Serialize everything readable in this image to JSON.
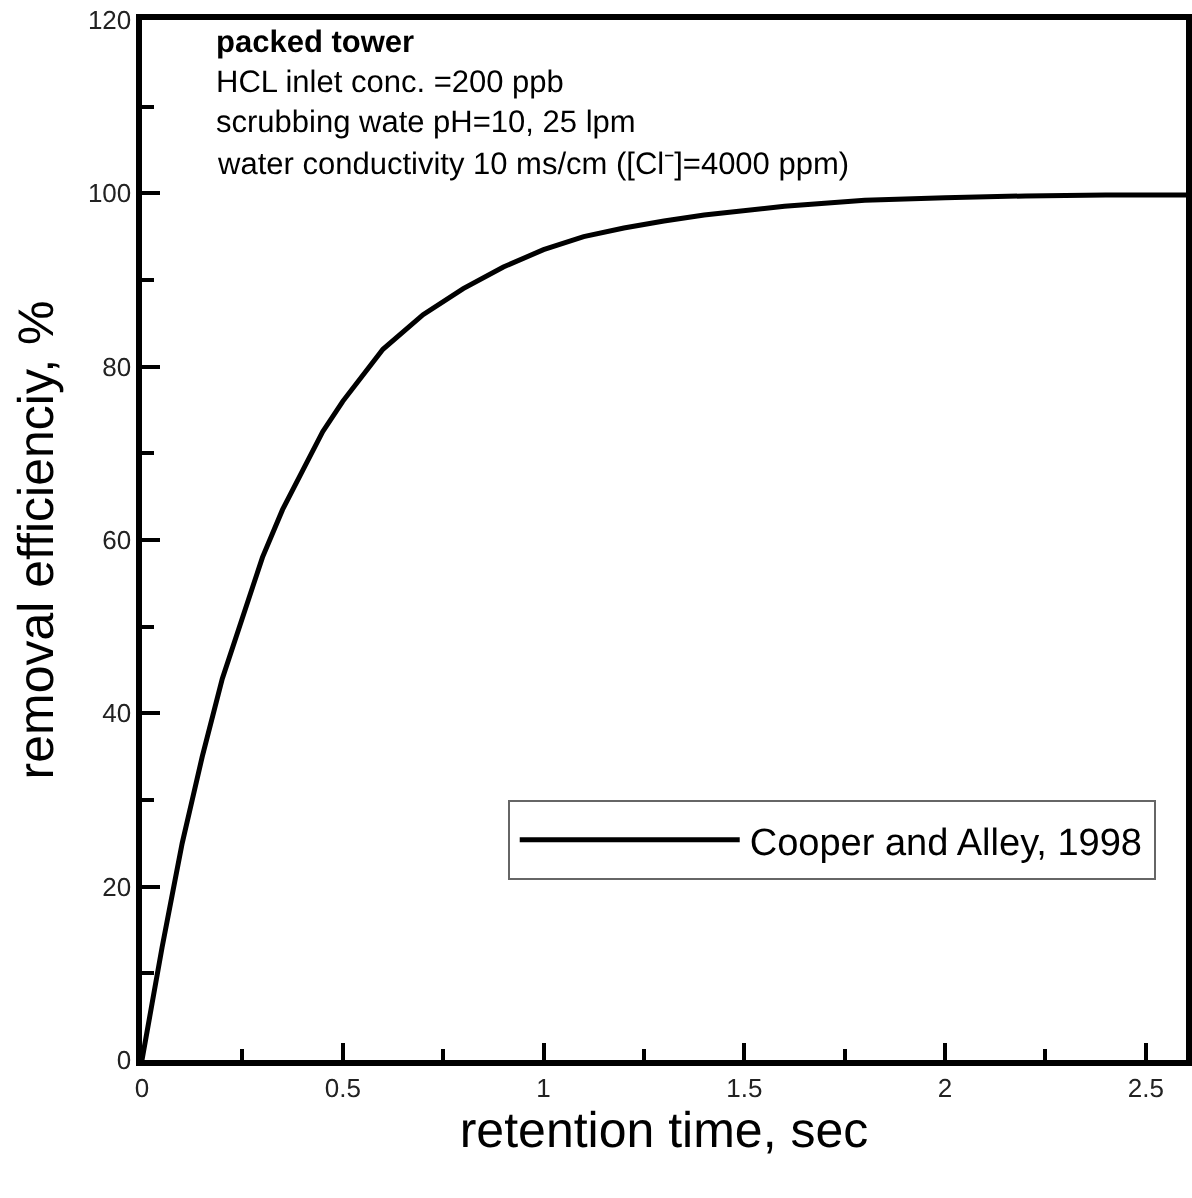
{
  "chart_data": {
    "type": "line",
    "xlabel": "retention time, sec",
    "ylabel": "removal efficienciy, %",
    "annotations": [
      "packed tower",
      "HCL inlet conc. =200 ppb",
      "scrubbing wate pH=10, 25 lpm",
      "water conductivity 10 ms/cm ([Cl⁻]=4000 ppm)"
    ],
    "x": [
      0,
      0.025,
      0.05,
      0.075,
      0.1,
      0.125,
      0.15,
      0.2,
      0.25,
      0.3,
      0.35,
      0.4,
      0.45,
      0.5,
      0.6,
      0.7,
      0.8,
      0.9,
      1.0,
      1.1,
      1.2,
      1.3,
      1.4,
      1.6,
      1.8,
      2.0,
      2.2,
      2.4,
      2.6
    ],
    "series": [
      {
        "name": "Cooper and Alley, 1998",
        "color": "#000000",
        "values": [
          0,
          6.5,
          13,
          19,
          25,
          30,
          35,
          44,
          51,
          58,
          63.5,
          68,
          72.5,
          76,
          82,
          86,
          89,
          91.5,
          93.5,
          95,
          96,
          96.8,
          97.5,
          98.5,
          99.2,
          99.5,
          99.7,
          99.8,
          99.8
        ]
      }
    ],
    "xlim": [
      0,
      2.6
    ],
    "xticks": [
      0,
      {
        "value": 0.25,
        "label": null
      },
      0.5,
      {
        "value": 0.75,
        "label": null
      },
      1,
      {
        "value": 1.25,
        "label": null
      },
      1.5,
      {
        "value": 1.75,
        "label": null
      },
      2,
      {
        "value": 2.25,
        "label": null
      },
      2.5
    ],
    "ylim": [
      0,
      120
    ],
    "yticks": [
      0,
      {
        "value": 10,
        "label": null
      },
      20,
      {
        "value": 30,
        "label": null
      },
      40,
      {
        "value": 50,
        "label": null
      },
      60,
      {
        "value": 70,
        "label": null
      },
      80,
      {
        "value": 90,
        "label": null
      },
      100,
      {
        "value": 110,
        "label": null
      },
      120
    ],
    "grid": false,
    "legend": "bottom right",
    "marker": "none",
    "line_style": "solid"
  }
}
